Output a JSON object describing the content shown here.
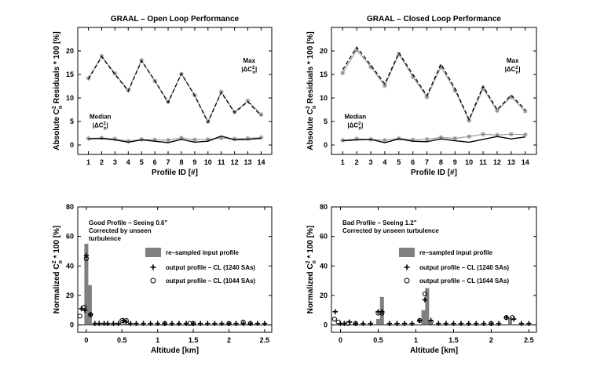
{
  "chart_data": [
    {
      "type": "line",
      "title": "GRAAL – Open Loop Performance",
      "xlabel": "Profile ID [#]",
      "ylabel": "Absolute C",
      "ylabel_sup": "2",
      "ylabel_sub": "n",
      "ylabel_tail": " Residuals * 100 [%]",
      "xlim": [
        0.2,
        14.8
      ],
      "ylim": [
        -2,
        25
      ],
      "xticks": [
        1,
        2,
        3,
        4,
        5,
        6,
        7,
        8,
        9,
        10,
        11,
        12,
        13,
        14
      ],
      "yticks": [
        0,
        5,
        10,
        15,
        20
      ],
      "annotations": {
        "max_line1": "Max",
        "max_line2": "|ΔC",
        "median_line1": "Median",
        "median_line2": "|ΔC"
      },
      "series": [
        {
          "name": "Max (dashed, black)",
          "x": [
            1,
            2,
            3,
            4,
            5,
            6,
            7,
            8,
            9,
            10,
            11,
            12,
            13,
            14
          ],
          "values": [
            14.0,
            18.8,
            15.0,
            11.5,
            17.9,
            13.7,
            9.0,
            15.2,
            10.5,
            4.8,
            11.2,
            6.9,
            9.2,
            6.2
          ]
        },
        {
          "name": "Max (grey, stars)",
          "x": [
            1,
            2,
            3,
            4,
            5,
            6,
            7,
            8,
            9,
            10,
            11,
            12,
            13,
            14
          ],
          "values": [
            14.2,
            18.9,
            15.2,
            11.6,
            18.0,
            13.6,
            9.2,
            15.1,
            10.6,
            5.0,
            11.3,
            7.0,
            9.4,
            6.5
          ]
        },
        {
          "name": "Median (solid, black)",
          "x": [
            1,
            2,
            3,
            4,
            5,
            6,
            7,
            8,
            9,
            10,
            11,
            12,
            13,
            14
          ],
          "values": [
            1.3,
            1.4,
            1.1,
            0.6,
            1.1,
            0.8,
            0.5,
            1.2,
            0.6,
            0.8,
            1.9,
            1.1,
            1.2,
            1.4
          ]
        },
        {
          "name": "Median (grey, stars)",
          "x": [
            1,
            2,
            3,
            4,
            5,
            6,
            7,
            8,
            9,
            10,
            11,
            12,
            13,
            14
          ],
          "values": [
            1.4,
            1.5,
            1.3,
            0.8,
            1.2,
            1.1,
            1.0,
            1.5,
            1.1,
            1.2,
            1.5,
            1.3,
            1.4,
            1.6
          ]
        }
      ]
    },
    {
      "type": "line",
      "title": "GRAAL – Closed Loop Performance",
      "xlabel": "Profile ID [#]",
      "ylabel": "Absolute C",
      "ylabel_sup": "2",
      "ylabel_sub": "n",
      "ylabel_tail": " Residuals * 100 [%]",
      "xlim": [
        0.2,
        14.8
      ],
      "ylim": [
        -2,
        25
      ],
      "xticks": [
        1,
        2,
        3,
        4,
        5,
        6,
        7,
        8,
        9,
        10,
        11,
        12,
        13,
        14
      ],
      "yticks": [
        0,
        5,
        10,
        15,
        20
      ],
      "annotations": {
        "max_line1": "Max",
        "max_line2": "|ΔC",
        "median_line1": "Median",
        "median_line2": "|ΔC"
      },
      "series": [
        {
          "name": "Max (dashed, black)",
          "x": [
            1,
            2,
            3,
            4,
            5,
            6,
            7,
            8,
            9,
            10,
            11,
            12,
            13,
            14
          ],
          "values": [
            16.0,
            20.8,
            17.0,
            13.0,
            19.6,
            15.0,
            10.5,
            17.2,
            12.0,
            5.4,
            12.5,
            7.5,
            10.6,
            7.5
          ]
        },
        {
          "name": "Max (grey, stars)",
          "x": [
            1,
            2,
            3,
            4,
            5,
            6,
            7,
            8,
            9,
            10,
            11,
            12,
            13,
            14
          ],
          "values": [
            15.3,
            20.2,
            16.6,
            12.6,
            19.3,
            14.5,
            10.2,
            16.6,
            11.6,
            5.2,
            12.0,
            7.3,
            10.2,
            7.2
          ]
        },
        {
          "name": "Median (solid, black)",
          "x": [
            1,
            2,
            3,
            4,
            5,
            6,
            7,
            8,
            9,
            10,
            11,
            12,
            13,
            14
          ],
          "values": [
            0.9,
            1.1,
            1.2,
            0.5,
            1.3,
            0.8,
            0.7,
            1.3,
            0.9,
            0.6,
            1.2,
            1.8,
            1.3,
            1.7
          ]
        },
        {
          "name": "Median (grey, stars)",
          "x": [
            1,
            2,
            3,
            4,
            5,
            6,
            7,
            8,
            9,
            10,
            11,
            12,
            13,
            14
          ],
          "values": [
            1.0,
            1.3,
            1.2,
            1.0,
            1.4,
            1.1,
            1.2,
            1.6,
            1.4,
            1.8,
            2.3,
            2.1,
            2.3,
            2.2
          ]
        }
      ]
    },
    {
      "type": "bar",
      "title": "",
      "xlabel": "Altitude [km]",
      "ylabel": "Normalized C",
      "ylabel_sup": "2",
      "ylabel_sub": "n",
      "ylabel_tail": " * 100 [%]",
      "xlim": [
        -0.12,
        2.6
      ],
      "ylim": [
        -5,
        80
      ],
      "xticks": [
        0,
        0.5,
        1,
        1.5,
        2,
        2.5
      ],
      "xtick_labels": [
        "0",
        "0.5",
        "1",
        "1.5",
        "2",
        "2.5"
      ],
      "yticks": [
        0,
        20,
        40,
        60,
        80
      ],
      "annotation_title": "Good Profile – Seeing 0.6\"",
      "annotation_line2": "Corrected by unseen",
      "annotation_line3": "turbulence",
      "legend": [
        "re–sampled input profile",
        "output profile – CL (1240 SAs)",
        "output profile – CL (1044 SAs)"
      ],
      "bars": {
        "x": [
          0.0,
          0.05,
          0.5,
          0.55
        ],
        "values": [
          55,
          27,
          1,
          1
        ]
      },
      "series": [
        {
          "name": "output profile – CL (1240 SAs)",
          "x": [
            -0.07,
            -0.02,
            0.0,
            0.06,
            0.12,
            0.18,
            0.25,
            0.3,
            0.38,
            0.45,
            0.52,
            0.56,
            0.62,
            0.7,
            0.8,
            0.9,
            1.0,
            1.1,
            1.2,
            1.3,
            1.4,
            1.5,
            1.6,
            1.7,
            1.8,
            1.9,
            2.0,
            2.1,
            2.2,
            2.3,
            2.4,
            2.5
          ],
          "values": [
            11,
            10,
            47,
            7,
            1,
            1,
            1,
            1,
            1,
            1,
            3,
            2,
            1,
            1,
            1,
            1,
            1,
            1,
            1,
            1,
            1,
            1,
            1,
            1,
            1,
            1,
            1,
            1,
            1,
            1,
            1,
            1
          ]
        },
        {
          "name": "output profile – CL (1044 SAs)",
          "x": [
            -0.09,
            -0.03,
            0.0,
            0.06,
            0.5,
            0.56,
            1.1,
            1.45,
            1.5,
            2.0,
            2.2,
            2.3
          ],
          "values": [
            6,
            12,
            45,
            7,
            3,
            3,
            1,
            1,
            1,
            1,
            2,
            1
          ]
        }
      ]
    },
    {
      "type": "bar",
      "title": "",
      "xlabel": "Altitude [km]",
      "ylabel": "Normalized C",
      "ylabel_sup": "2",
      "ylabel_sub": "n",
      "ylabel_tail": " * 100 [%]",
      "xlim": [
        -0.12,
        2.6
      ],
      "ylim": [
        -5,
        80
      ],
      "xticks": [
        0,
        0.5,
        1,
        1.5,
        2,
        2.5
      ],
      "xtick_labels": [
        "0",
        "0.5",
        "1",
        "1.5",
        "2",
        "2.5"
      ],
      "yticks": [
        0,
        20,
        40,
        60,
        80
      ],
      "annotation_title": "Bad Profile – Seeing 1.2\"",
      "annotation_line2": "Corrected by unseen turbulence",
      "annotation_line3": "",
      "legend": [
        "re–sampled input profile",
        "output profile – CL (1240 SAs)",
        "output profile – CL (1044 SAs)"
      ],
      "bars": {
        "x": [
          0.5,
          0.55,
          1.1,
          1.15,
          2.25
        ],
        "values": [
          4,
          19,
          10,
          25,
          5
        ]
      },
      "series": [
        {
          "name": "output profile – CL (1240 SAs)",
          "x": [
            -0.07,
            0.0,
            0.05,
            0.12,
            0.2,
            0.3,
            0.4,
            0.5,
            0.55,
            0.65,
            0.75,
            0.85,
            0.95,
            1.05,
            1.12,
            1.2,
            1.3,
            1.4,
            1.5,
            1.6,
            1.7,
            1.8,
            1.9,
            2.0,
            2.1,
            2.2,
            2.3,
            2.4,
            2.5
          ],
          "values": [
            9,
            1,
            1,
            2,
            1,
            1,
            1,
            9,
            9,
            1,
            1,
            1,
            1,
            3,
            17,
            3,
            1,
            1,
            1,
            1,
            1,
            1,
            1,
            1,
            1,
            5,
            4,
            1,
            1
          ]
        },
        {
          "name": "output profile – CL (1044 SAs)",
          "x": [
            -0.08,
            -0.03,
            0.1,
            0.2,
            0.5,
            0.55,
            1.05,
            1.12,
            1.2,
            2.0,
            2.2,
            2.28
          ],
          "values": [
            4,
            2,
            1,
            1,
            8,
            8,
            3,
            21,
            2,
            1,
            5,
            5
          ]
        }
      ]
    }
  ]
}
